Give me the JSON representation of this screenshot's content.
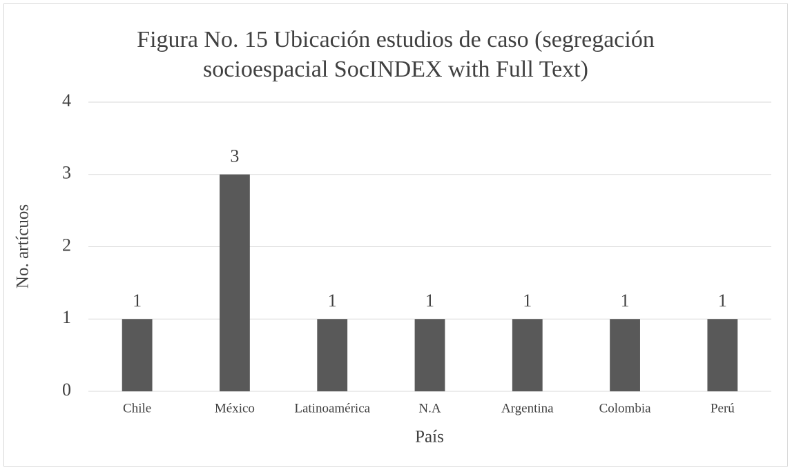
{
  "chart_data": {
    "type": "bar",
    "title": [
      "Figura No. 15 Ubicación estudios de caso (segregación",
      "socioespacial SocINDEX with Full Text)"
    ],
    "x_label": "País",
    "y_label": "No. artícuos",
    "categories": [
      "Chile",
      "México",
      "Latinoamérica",
      "N.A",
      "Argentina",
      "Colombia",
      "Perú"
    ],
    "values": [
      1,
      3,
      1,
      1,
      1,
      1,
      1
    ],
    "color": "#595959",
    "ylim": [
      0,
      4
    ],
    "yticks": [
      0,
      1,
      2,
      3,
      4
    ],
    "grid": true,
    "data_labels": true
  }
}
